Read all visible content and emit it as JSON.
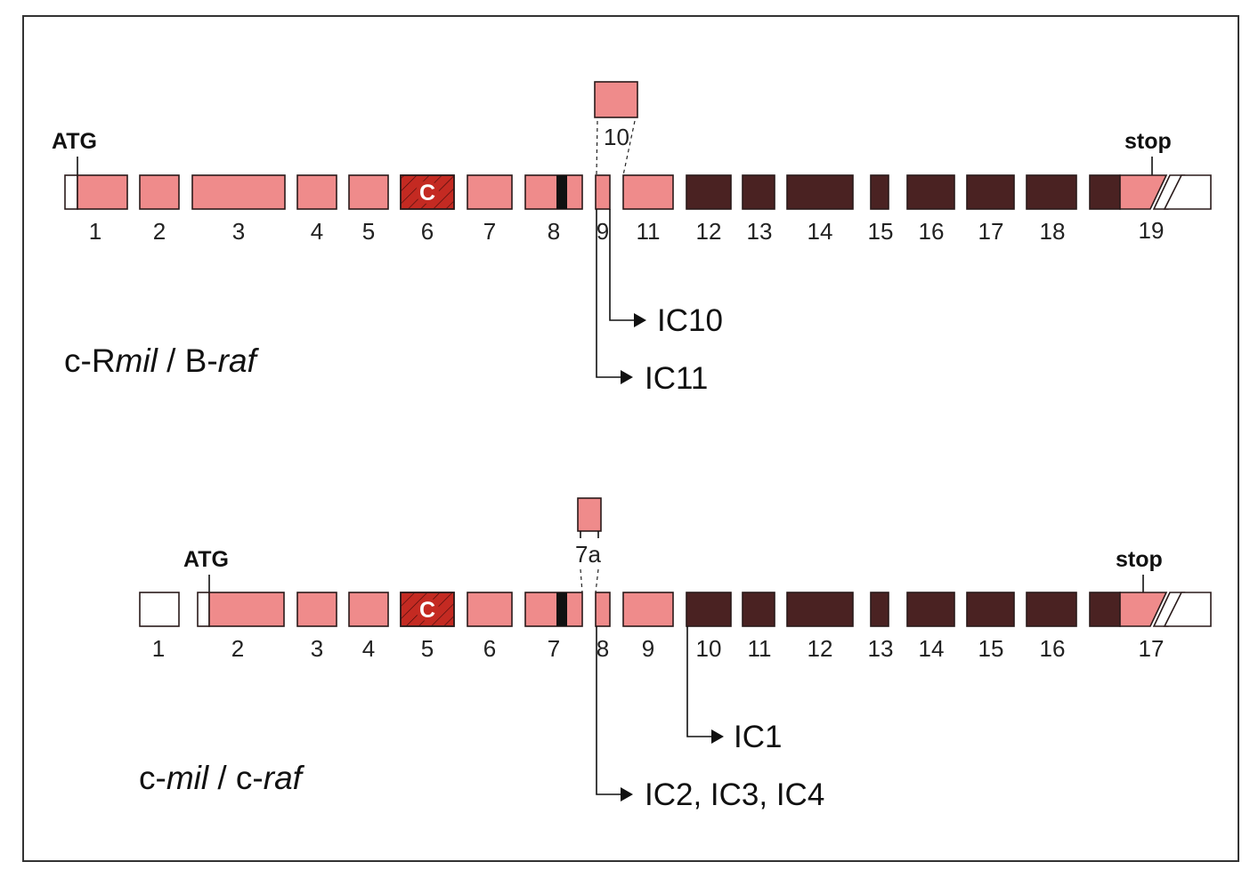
{
  "colors": {
    "exon_fill": "#ef8b8b",
    "dark_exon_fill": "#4a2222",
    "conserved_c_fill": "#c42a22",
    "outline": "#2a1a1a"
  },
  "top": {
    "gene_prefix": "c-R",
    "gene_italic1": "mil",
    "gene_sep": " / B-",
    "gene_italic2": "raf",
    "start_label": "ATG",
    "stop_label": "stop",
    "conserved_label": "C",
    "extra_exon_label": "10",
    "exon_numbers": [
      "1",
      "2",
      "3",
      "4",
      "5",
      "6",
      "7",
      "8",
      "9",
      "11",
      "12",
      "13",
      "14",
      "15",
      "16",
      "17",
      "18",
      "19"
    ],
    "clones": [
      "IC10",
      "IC11"
    ]
  },
  "bottom": {
    "gene_prefix": "c-",
    "gene_italic1": "mil",
    "gene_sep": " / c-",
    "gene_italic2": "raf",
    "start_label": "ATG",
    "stop_label": "stop",
    "conserved_label": "C",
    "extra_exon_label": "7a",
    "exon_numbers": [
      "1",
      "2",
      "3",
      "4",
      "5",
      "6",
      "7",
      "8",
      "9",
      "10",
      "11",
      "12",
      "13",
      "14",
      "15",
      "16",
      "17"
    ],
    "clones": [
      "IC1",
      "IC2, IC3, IC4"
    ]
  }
}
